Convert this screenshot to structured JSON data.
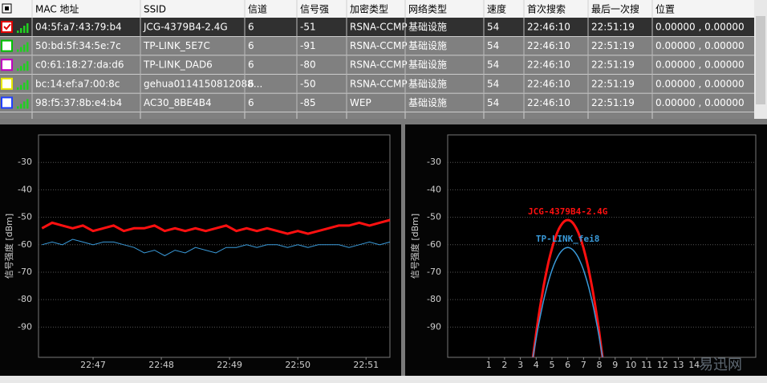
{
  "table": {
    "columns": [
      "MAC 地址",
      "SSID",
      "信道",
      "信号强",
      "加密类型",
      "网络类型",
      "速度",
      "首次搜索",
      "最后一次搜",
      "位置"
    ],
    "rows": [
      {
        "color": "#e00000",
        "checked": true,
        "selected": true,
        "cells": [
          "04:5f:a7:43:79:b4",
          "JCG-4379B4-2.4G",
          "6",
          "-51",
          "RSNA-CCMP",
          "基础设施",
          "54",
          "22:46:10",
          "22:51:19",
          "0.00000 , 0.00000"
        ]
      },
      {
        "color": "#00c000",
        "checked": false,
        "selected": false,
        "cells": [
          "50:bd:5f:34:5e:7c",
          "TP-LINK_5E7C",
          "6",
          "-91",
          "RSNA-CCMP",
          "基础设施",
          "54",
          "22:46:10",
          "22:51:19",
          "0.00000 , 0.00000"
        ]
      },
      {
        "color": "#c000c0",
        "checked": false,
        "selected": false,
        "cells": [
          "c0:61:18:27:da:d6",
          "TP-LINK_DAD6",
          "6",
          "-80",
          "RSNA-CCMP",
          "基础设施",
          "54",
          "22:46:10",
          "22:51:19",
          "0.00000 , 0.00000"
        ]
      },
      {
        "color": "#e8e800",
        "checked": false,
        "selected": false,
        "cells": [
          "bc:14:ef:a7:00:8c",
          "gehua0114150812088...",
          "6",
          "-50",
          "RSNA-CCMP",
          "基础设施",
          "54",
          "22:46:10",
          "22:51:19",
          "0.00000 , 0.00000"
        ]
      },
      {
        "color": "#2040ff",
        "checked": false,
        "selected": false,
        "cells": [
          "98:f5:37:8b:e4:b4",
          "AC30_8BE4B4",
          "6",
          "-85",
          "WEP",
          "基础设施",
          "54",
          "22:46:10",
          "22:51:19",
          "0.00000 , 0.00000"
        ]
      }
    ]
  },
  "chart_data": [
    {
      "type": "line",
      "ylabel": "信号强度 [dBm]",
      "x": [
        46.25,
        46.4,
        46.55,
        46.7,
        46.85,
        47.0,
        47.15,
        47.3,
        47.45,
        47.6,
        47.75,
        47.9,
        48.05,
        48.2,
        48.35,
        48.5,
        48.65,
        48.8,
        48.95,
        49.1,
        49.25,
        49.4,
        49.55,
        49.7,
        49.85,
        50.0,
        50.15,
        50.3,
        50.45,
        50.6,
        50.75,
        50.9,
        51.05,
        51.2,
        51.35
      ],
      "series": [
        {
          "color": "#ff1010",
          "width": 3,
          "values": [
            -54,
            -52,
            -53,
            -54,
            -53,
            -55,
            -54,
            -53,
            -55,
            -54,
            -54,
            -53,
            -55,
            -54,
            -55,
            -54,
            -55,
            -54,
            -53,
            -55,
            -54,
            -55,
            -54,
            -55,
            -56,
            -55,
            -56,
            -55,
            -54,
            -53,
            -53,
            -52,
            -53,
            -52,
            -51
          ]
        },
        {
          "color": "#3a9ad9",
          "width": 1,
          "values": [
            -60,
            -59,
            -60,
            -58,
            -59,
            -60,
            -59,
            -59,
            -60,
            -61,
            -63,
            -62,
            -64,
            -62,
            -63,
            -61,
            -62,
            -63,
            -61,
            -61,
            -60,
            -61,
            -60,
            -60,
            -61,
            -60,
            -61,
            -60,
            -60,
            -60,
            -61,
            -60,
            -59,
            -60,
            -59
          ]
        }
      ],
      "xlim": [
        46.2,
        51.35
      ],
      "xticks": [
        {
          "value": 47,
          "label": "22:47"
        },
        {
          "value": 48,
          "label": "22:48"
        },
        {
          "value": 49,
          "label": "22:49"
        },
        {
          "value": 50,
          "label": "22:50"
        },
        {
          "value": 51,
          "label": "22:51"
        }
      ],
      "ylim": [
        -101,
        -20
      ],
      "yticks": [
        -30,
        -40,
        -50,
        -60,
        -70,
        -80,
        -90
      ],
      "grid": true
    },
    {
      "type": "channel",
      "ylabel": "信号强度 [dBm]",
      "series": [
        {
          "name": "JCG-4379B4-2.4G",
          "color": "#ff1010",
          "width": 3,
          "channel": 6,
          "value": -51
        },
        {
          "name": "TP-LINK_fei8",
          "color": "#3a9ad9",
          "width": 1.5,
          "channel": 6,
          "value": -61
        }
      ],
      "xlim": [
        -1.6,
        17.9
      ],
      "xticks": [
        1,
        2,
        3,
        4,
        5,
        6,
        7,
        8,
        9,
        10,
        11,
        12,
        13,
        14
      ],
      "ylim": [
        -101,
        -20
      ],
      "yticks": [
        -30,
        -40,
        -50,
        -60,
        -70,
        -80,
        -90
      ],
      "grid": true
    }
  ],
  "watermark": "易迅网"
}
